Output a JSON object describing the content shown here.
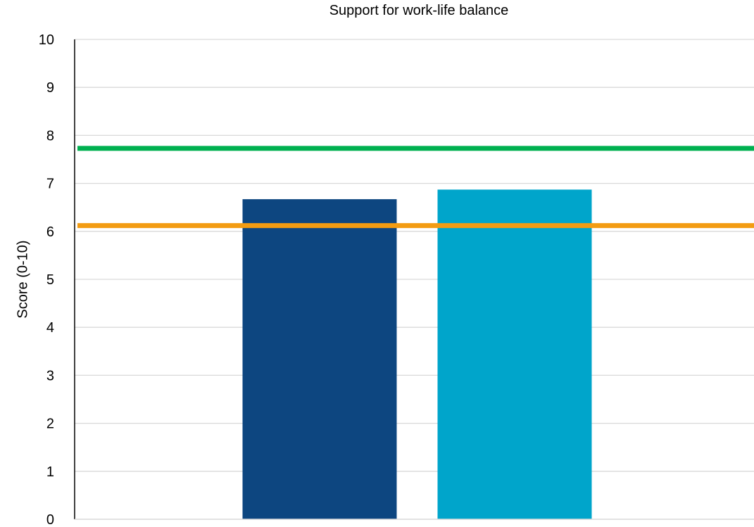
{
  "chart_data": {
    "type": "bar",
    "title": "Support for work-life balance",
    "ylabel": "Score (0-10)",
    "xlabel": "",
    "categories": [
      "",
      ""
    ],
    "values": [
      6.67,
      6.87
    ],
    "bar_colors": [
      "#0d4680",
      "#00a5cb"
    ],
    "ylim": [
      0,
      10
    ],
    "yticks": [
      0,
      1,
      2,
      3,
      4,
      5,
      6,
      7,
      8,
      9,
      10
    ],
    "grid": true,
    "reference_lines": [
      {
        "value": 7.73,
        "color": "#00b050"
      },
      {
        "value": 6.12,
        "color": "#f39c12"
      }
    ]
  }
}
